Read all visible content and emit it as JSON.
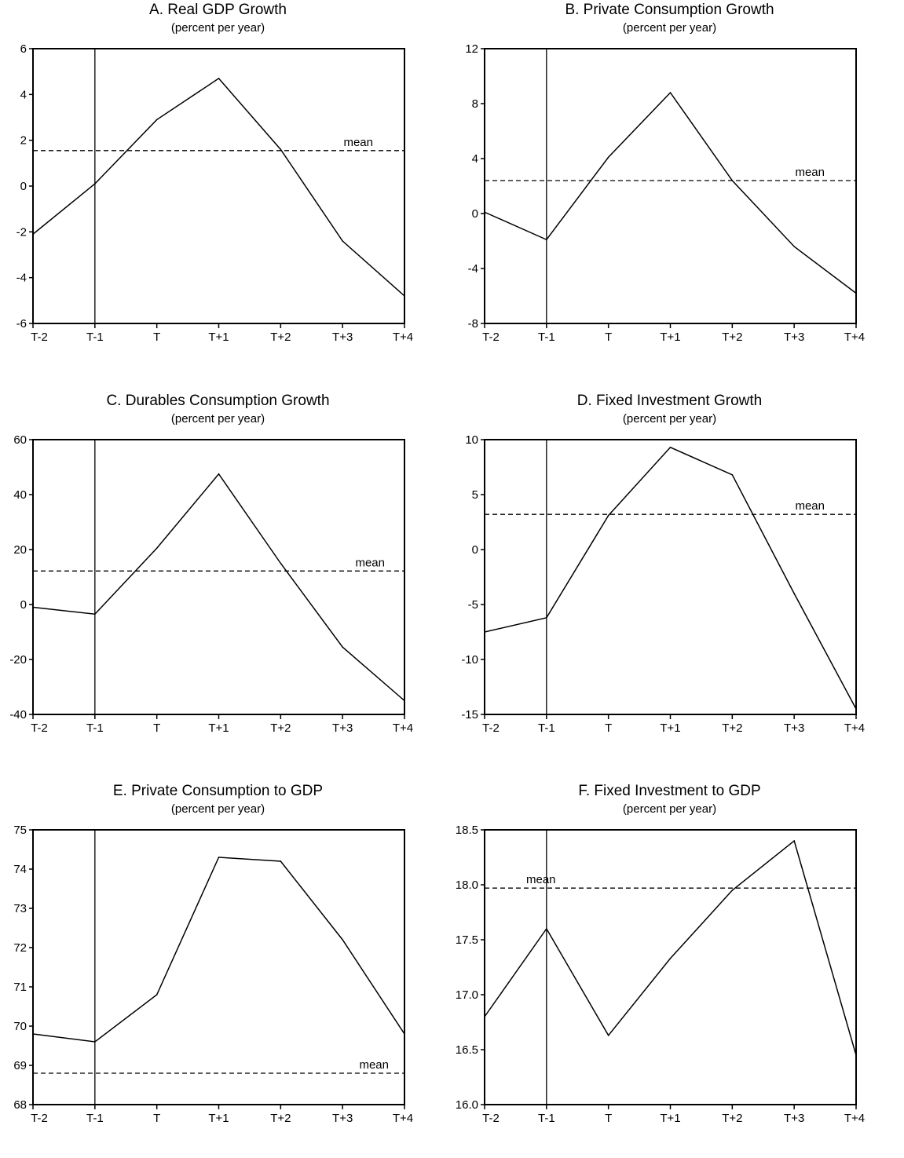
{
  "chart_data": [
    {
      "type": "line",
      "title": "A.  Real GDP Growth",
      "subtitle": "(percent per year)",
      "categories": [
        "T-2",
        "T-1",
        "T",
        "T+1",
        "T+2",
        "T+3",
        "T+4"
      ],
      "series": [
        {
          "values": [
            -2.1,
            0.1,
            2.9,
            4.7,
            1.6,
            -2.4,
            -4.8
          ]
        }
      ],
      "mean": {
        "label": "mean",
        "value": 1.55
      },
      "y_ticks": [
        "6",
        "4",
        "2",
        "0",
        "-2",
        "-4",
        "-6"
      ],
      "ylim": [
        -6,
        6
      ],
      "event_line": "T-1",
      "grid": false
    },
    {
      "type": "line",
      "title": "B.  Private Consumption Growth",
      "subtitle": "(percent per year)",
      "categories": [
        "T-2",
        "T-1",
        "T",
        "T+1",
        "T+2",
        "T+3",
        "T+4"
      ],
      "series": [
        {
          "values": [
            0.1,
            -1.9,
            4.1,
            8.8,
            2.4,
            -2.4,
            -5.8
          ]
        }
      ],
      "mean": {
        "label": "mean",
        "value": 2.4
      },
      "y_ticks": [
        "12",
        "8",
        "4",
        "0",
        "-4",
        "-8"
      ],
      "ylim": [
        -8,
        12
      ],
      "event_line": "T-1",
      "grid": false
    },
    {
      "type": "line",
      "title": "C.  Durables Consumption Growth",
      "subtitle": "(percent per year)",
      "categories": [
        "T-2",
        "T-1",
        "T",
        "T+1",
        "T+2",
        "T+3",
        "T+4"
      ],
      "series": [
        {
          "values": [
            -1,
            -3.5,
            20.5,
            47.5,
            15,
            -15.5,
            -35
          ]
        }
      ],
      "mean": {
        "label": "mean",
        "value": 12.2
      },
      "y_ticks": [
        "60",
        "40",
        "20",
        "0",
        "-20",
        "-40"
      ],
      "ylim": [
        -40,
        60
      ],
      "event_line": "T-1",
      "grid": false
    },
    {
      "type": "line",
      "title": "D.  Fixed Investment Growth",
      "subtitle": "(percent per year)",
      "categories": [
        "T-2",
        "T-1",
        "T",
        "T+1",
        "T+2",
        "T+3",
        "T+4"
      ],
      "series": [
        {
          "values": [
            -7.5,
            -6.2,
            3.1,
            9.3,
            6.8,
            -4,
            -14.5
          ]
        }
      ],
      "mean": {
        "label": "mean",
        "value": 3.2
      },
      "y_ticks": [
        "10",
        "5",
        "0",
        "-5",
        "-10",
        "-15"
      ],
      "ylim": [
        -15,
        10
      ],
      "event_line": "T-1",
      "grid": false
    },
    {
      "type": "line",
      "title": "E.  Private Consumption to GDP",
      "subtitle": "(percent per year)",
      "categories": [
        "T-2",
        "T-1",
        "T",
        "T+1",
        "T+2",
        "T+3",
        "T+4"
      ],
      "series": [
        {
          "values": [
            69.8,
            69.6,
            70.8,
            74.3,
            74.2,
            72.2,
            69.8
          ]
        }
      ],
      "mean": {
        "label": "mean",
        "value": 68.8
      },
      "y_ticks": [
        "75",
        "74",
        "73",
        "72",
        "71",
        "70",
        "69",
        "68"
      ],
      "ylim": [
        68,
        75
      ],
      "event_line": "T-1",
      "grid": false
    },
    {
      "type": "line",
      "title": "F.  Fixed Investment to GDP",
      "subtitle": "(percent per year)",
      "categories": [
        "T-2",
        "T-1",
        "T",
        "T+1",
        "T+2",
        "T+3",
        "T+4"
      ],
      "series": [
        {
          "values": [
            16.8,
            17.6,
            16.63,
            17.33,
            17.95,
            18.4,
            16.45
          ]
        }
      ],
      "mean": {
        "label": "mean",
        "value": 17.97
      },
      "y_ticks": [
        "18.5",
        "18.0",
        "17.5",
        "17.0",
        "16.5",
        "16.0"
      ],
      "ylim": [
        16,
        18.5
      ],
      "event_line": "T-1",
      "grid": false
    }
  ]
}
